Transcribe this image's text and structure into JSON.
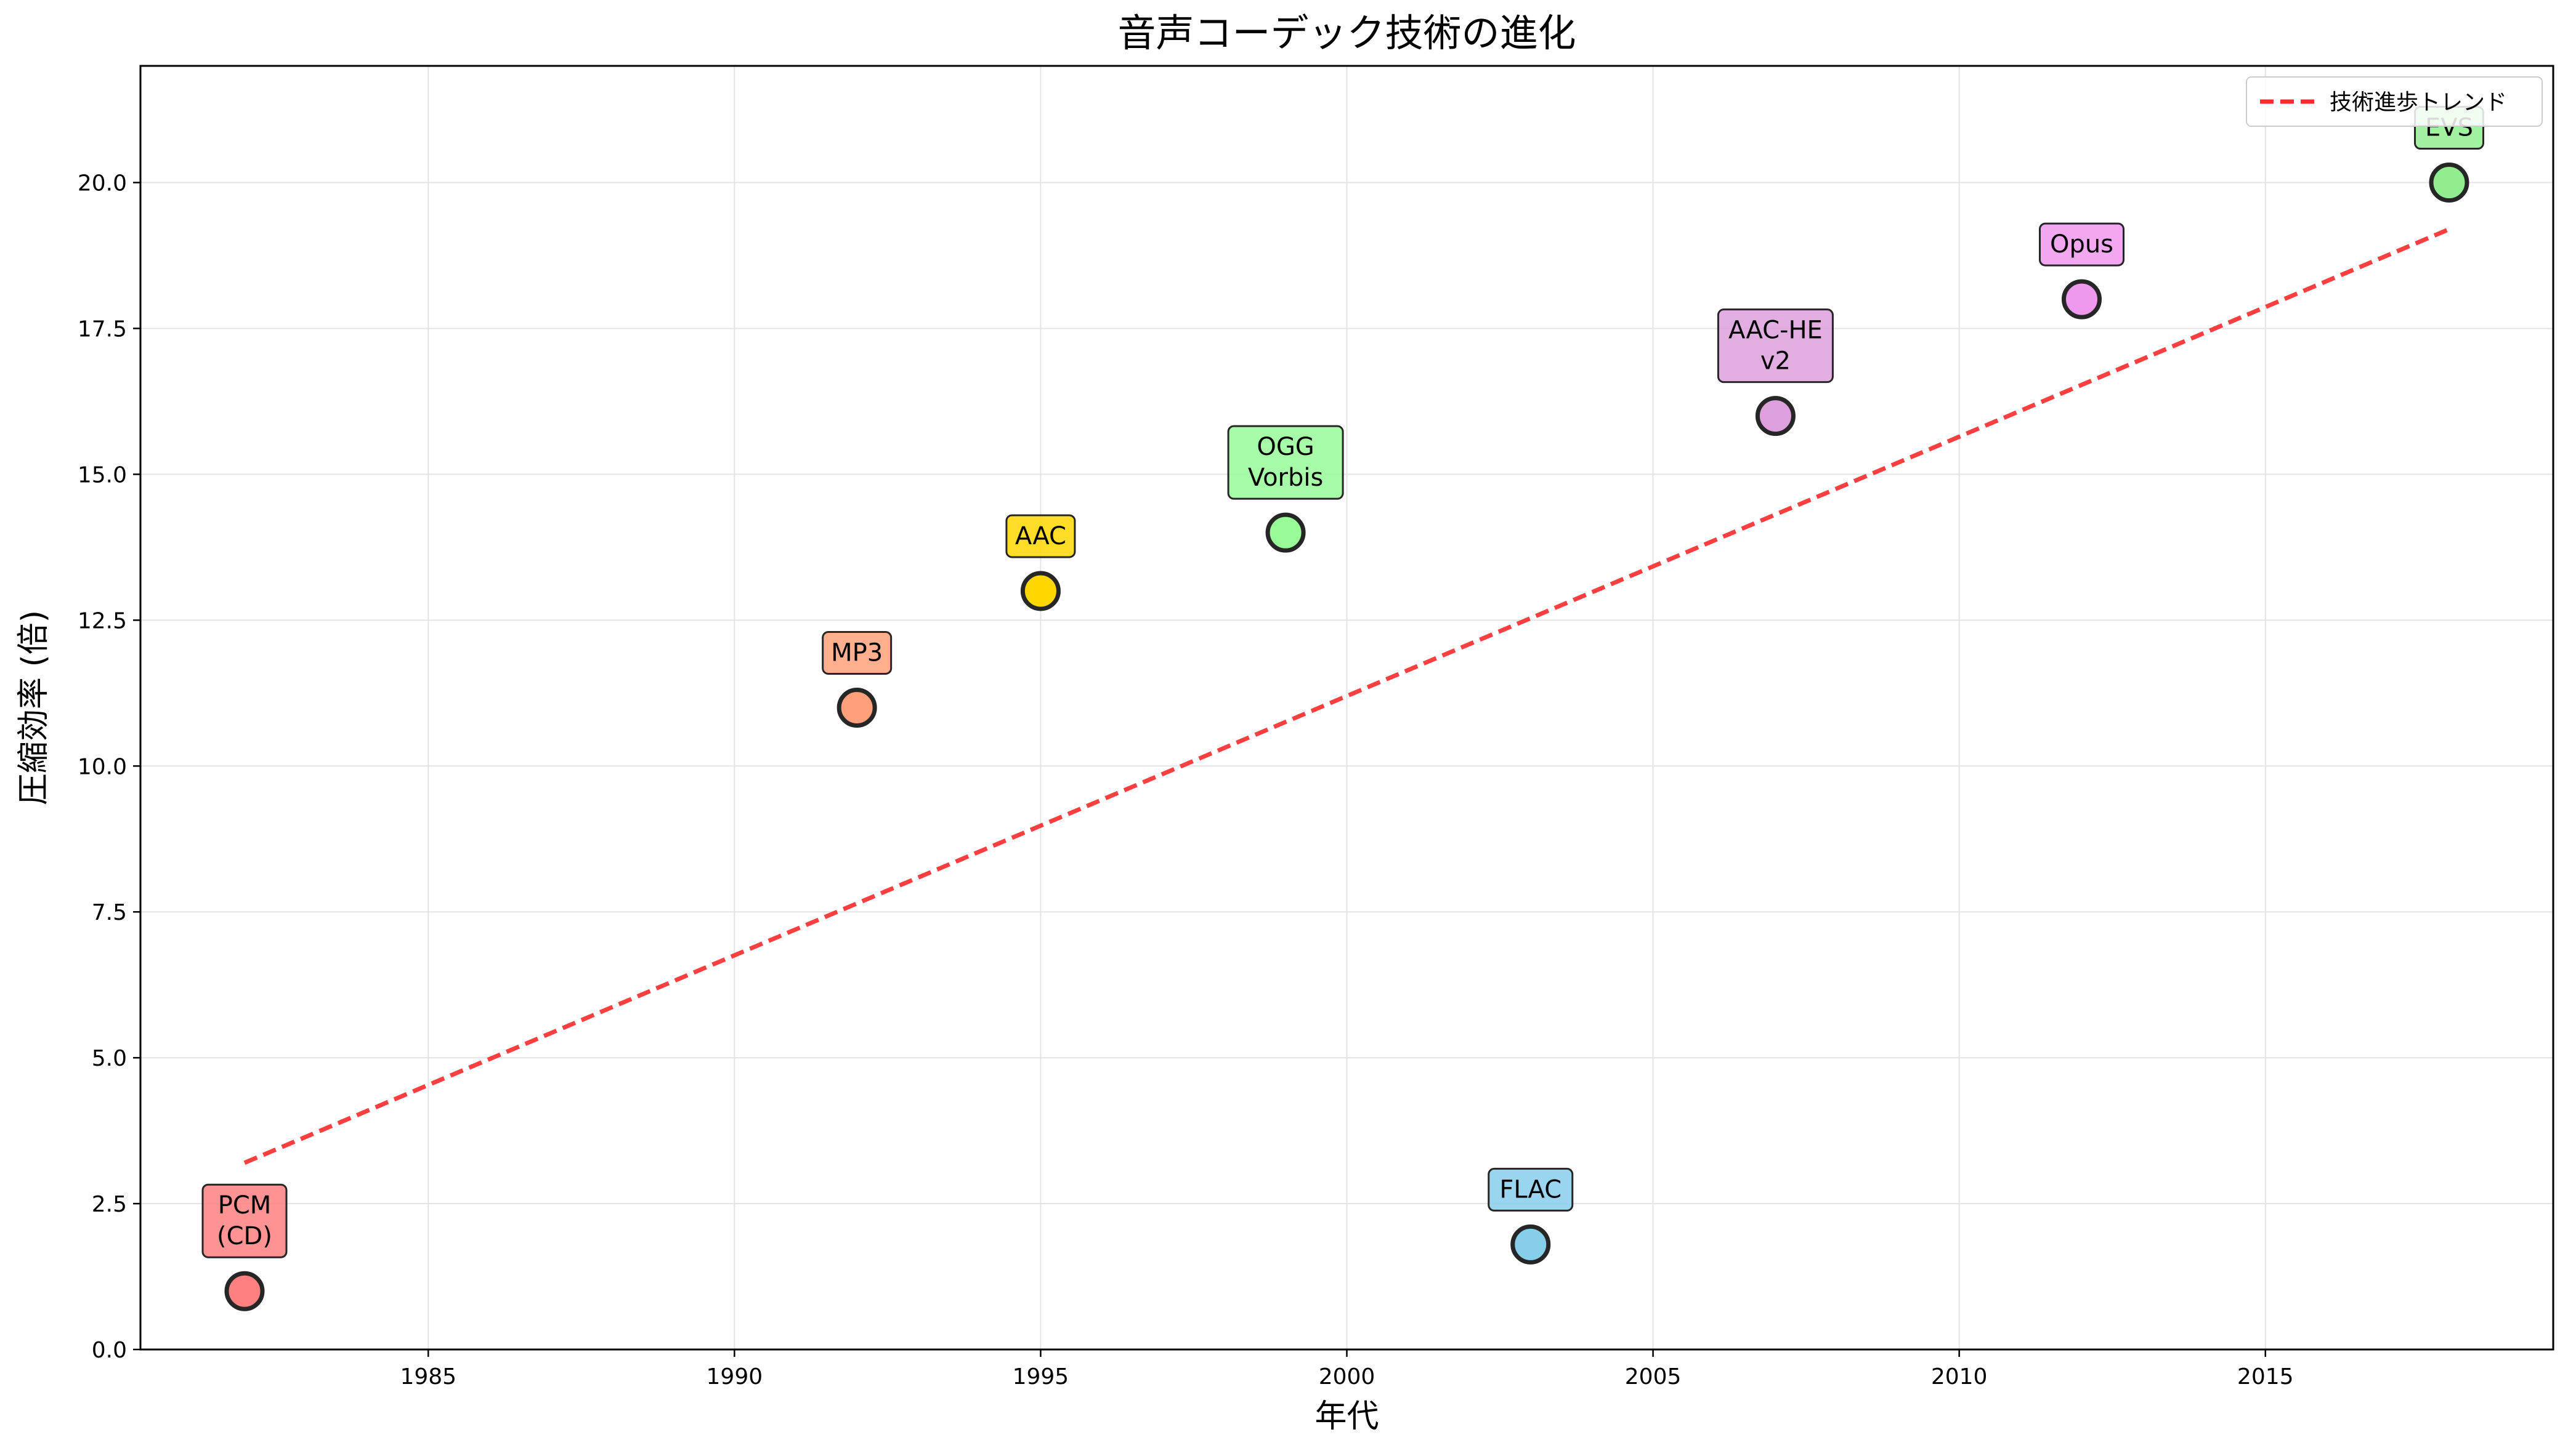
{
  "chart_data": {
    "type": "scatter",
    "title": "音声コーデック技術の進化",
    "xlabel": "年代",
    "ylabel": "圧縮効率 (倍)",
    "xlim": [
      1980.3,
      2019.7
    ],
    "ylim": [
      0,
      22
    ],
    "xticks": [
      1985,
      1990,
      1995,
      2000,
      2005,
      2010,
      2015
    ],
    "yticks": [
      0.0,
      2.5,
      5.0,
      7.5,
      10.0,
      12.5,
      15.0,
      17.5,
      20.0
    ],
    "grid": true,
    "legend_position": "top-right",
    "points": [
      {
        "label": "PCM\n(CD)",
        "x": 1982,
        "y": 1.0,
        "color": "#ff8080"
      },
      {
        "label": "MP3",
        "x": 1992,
        "y": 11.0,
        "color": "#ffa07a"
      },
      {
        "label": "AAC",
        "x": 1995,
        "y": 13.0,
        "color": "#ffd700"
      },
      {
        "label": "OGG\nVorbis",
        "x": 1999,
        "y": 14.0,
        "color": "#98fb98"
      },
      {
        "label": "FLAC",
        "x": 2003,
        "y": 1.8,
        "color": "#87ceeb"
      },
      {
        "label": "AAC-HE\nv2",
        "x": 2007,
        "y": 16.0,
        "color": "#dda0dd"
      },
      {
        "label": "Opus",
        "x": 2012,
        "y": 18.0,
        "color": "#ee99ee"
      },
      {
        "label": "EVS",
        "x": 2018,
        "y": 20.0,
        "color": "#90ee90"
      }
    ],
    "trend": {
      "name": "技術進歩トレンド",
      "color": "#ff2a2a",
      "x": [
        1982,
        2018
      ],
      "y": [
        3.2,
        19.2
      ]
    }
  }
}
